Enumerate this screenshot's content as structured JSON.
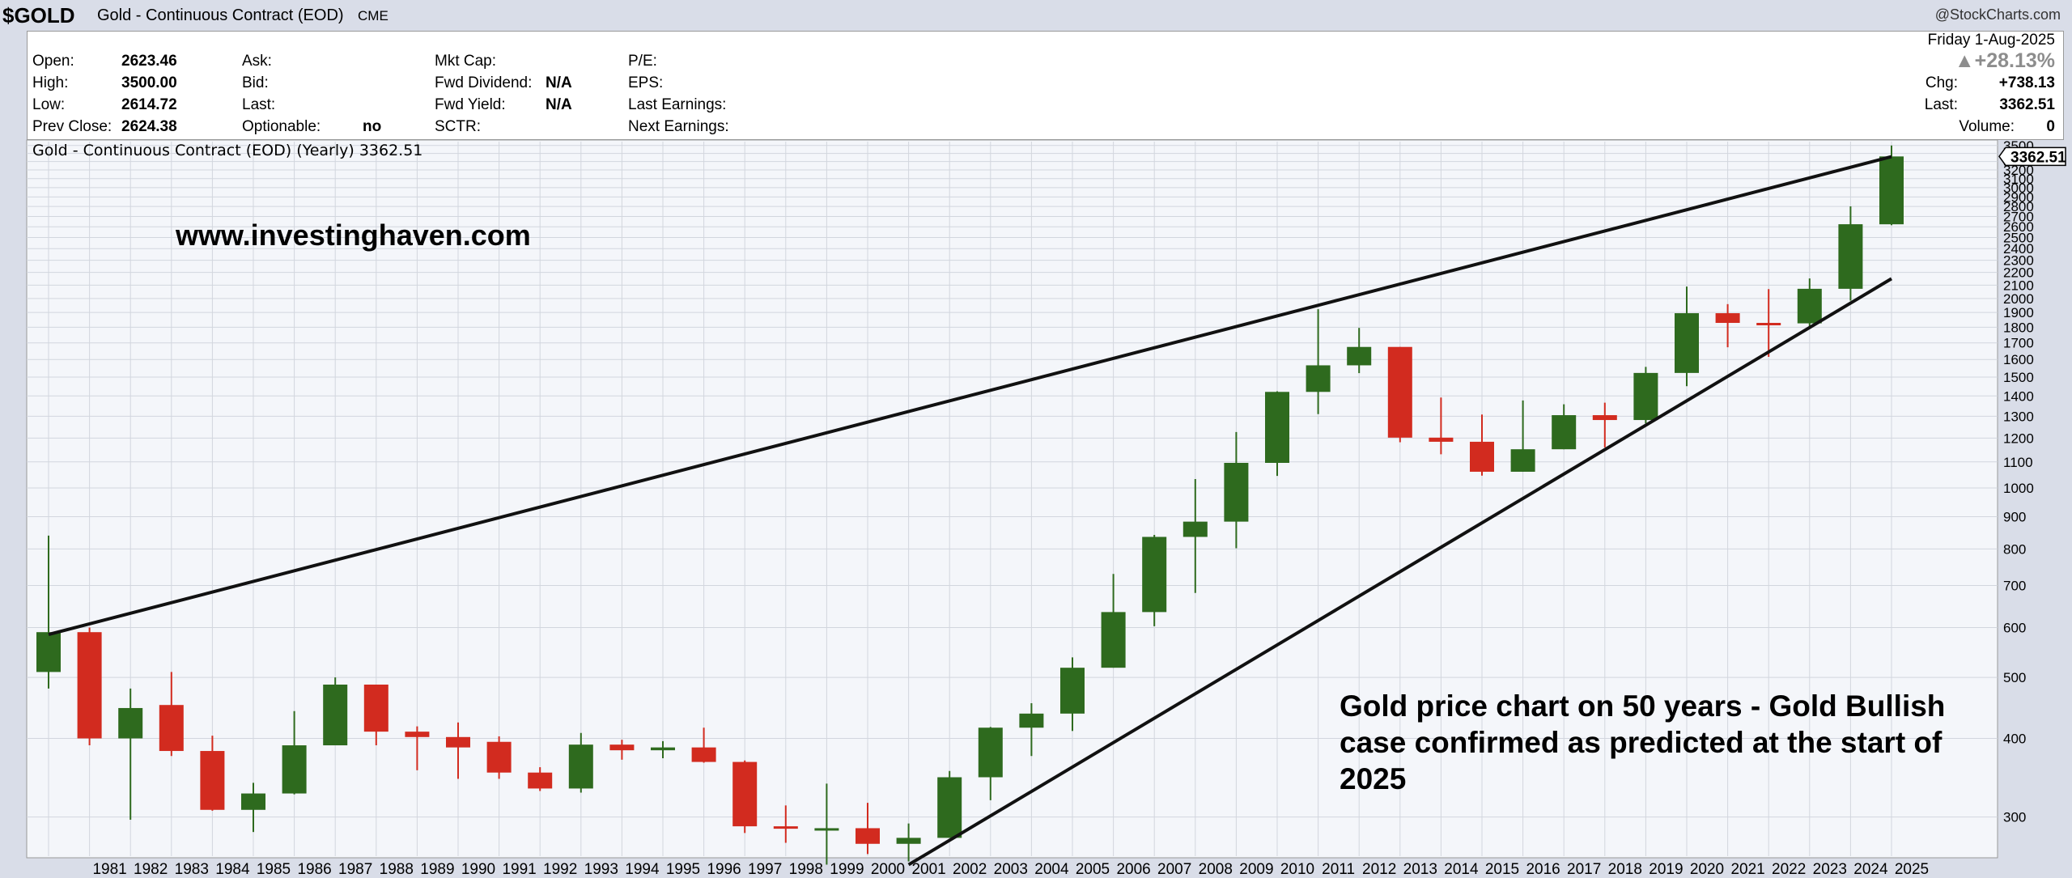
{
  "header": {
    "symbol": "$GOLD",
    "name": "Gold - Continuous Contract (EOD)",
    "exchange": "CME",
    "credit": "@StockCharts.com"
  },
  "quote": {
    "open_label": "Open:",
    "open": "2623.46",
    "high_label": "High:",
    "high": "3500.00",
    "low_label": "Low:",
    "low": "2614.72",
    "prev_close_label": "Prev Close:",
    "prev_close": "2624.38",
    "ask_label": "Ask:",
    "bid_label": "Bid:",
    "last_label": "Last:",
    "optionable_label": "Optionable:",
    "optionable": "no",
    "mkt_cap_label": "Mkt Cap:",
    "fwd_dividend_label": "Fwd Dividend:",
    "fwd_dividend": "N/A",
    "fwd_yield_label": "Fwd Yield:",
    "fwd_yield": "N/A",
    "sctr_label": "SCTR:",
    "pe_label": "P/E:",
    "eps_label": "EPS:",
    "last_earnings_label": "Last Earnings:",
    "next_earnings_label": "Next Earnings:",
    "date": "Friday  1-Aug-2025",
    "pct_change": "▲+28.13%",
    "chg_label": "Chg:",
    "chg": "+738.13",
    "last_price_label": "Last:",
    "last_price": "3362.51",
    "volume_label": "Volume:",
    "volume": "0"
  },
  "chart_data": {
    "type": "candlestick",
    "legend": "Gold - Continuous Contract (EOD) (Yearly) 3362.51",
    "price_tag": "3362.51",
    "watermark": "www.investinghaven.com",
    "annotation": [
      "Gold price chart on 50 years - Gold Bullish",
      "case confirmed as predicted at the start of",
      "2025"
    ],
    "y_scale": "log",
    "ylim": [
      260,
      3550
    ],
    "y_ticks": [
      300,
      400,
      500,
      600,
      700,
      800,
      900,
      1000,
      1100,
      1200,
      1300,
      1400,
      1500,
      1600,
      1700,
      1800,
      1900,
      2000,
      2100,
      2200,
      2300,
      2400,
      2500,
      2600,
      2700,
      2800,
      2900,
      3000,
      3100,
      3200,
      3300,
      3400,
      3500
    ],
    "x_labels": [
      "1981",
      "1982",
      "1983",
      "1984",
      "1985",
      "1986",
      "1987",
      "1988",
      "1989",
      "1990",
      "1991",
      "1992",
      "1993",
      "1994",
      "1995",
      "1996",
      "1997",
      "1998",
      "1999",
      "2000",
      "2001",
      "2002",
      "2003",
      "2004",
      "2005",
      "2006",
      "2007",
      "2008",
      "2009",
      "2010",
      "2011",
      "2012",
      "2013",
      "2014",
      "2015",
      "2016",
      "2017",
      "2018",
      "2019",
      "2020",
      "2021",
      "2022",
      "2023",
      "2024",
      "2025"
    ],
    "candles": [
      {
        "year": "1980",
        "open": 510,
        "high": 840,
        "low": 480,
        "close": 590
      },
      {
        "year": "1981",
        "open": 590,
        "high": 600,
        "low": 390,
        "close": 400
      },
      {
        "year": "1982",
        "open": 400,
        "high": 480,
        "low": 297,
        "close": 447
      },
      {
        "year": "1983",
        "open": 452,
        "high": 510,
        "low": 375,
        "close": 382
      },
      {
        "year": "1984",
        "open": 382,
        "high": 404,
        "low": 307,
        "close": 308
      },
      {
        "year": "1985",
        "open": 308,
        "high": 340,
        "low": 284,
        "close": 327
      },
      {
        "year": "1986",
        "open": 327,
        "high": 442,
        "low": 326,
        "close": 390
      },
      {
        "year": "1987",
        "open": 390,
        "high": 500,
        "low": 390,
        "close": 487
      },
      {
        "year": "1988",
        "open": 487,
        "high": 487,
        "low": 390,
        "close": 410
      },
      {
        "year": "1989",
        "open": 410,
        "high": 418,
        "low": 356,
        "close": 402
      },
      {
        "year": "1990",
        "open": 402,
        "high": 424,
        "low": 345,
        "close": 387
      },
      {
        "year": "1991",
        "open": 395,
        "high": 403,
        "low": 345,
        "close": 353
      },
      {
        "year": "1992",
        "open": 353,
        "high": 360,
        "low": 330,
        "close": 333
      },
      {
        "year": "1993",
        "open": 333,
        "high": 408,
        "low": 328,
        "close": 391
      },
      {
        "year": "1994",
        "open": 391,
        "high": 398,
        "low": 370,
        "close": 383
      },
      {
        "year": "1995",
        "open": 383,
        "high": 396,
        "low": 372,
        "close": 387
      },
      {
        "year": "1996",
        "open": 387,
        "high": 416,
        "low": 366,
        "close": 367
      },
      {
        "year": "1997",
        "open": 367,
        "high": 369,
        "low": 283,
        "close": 290
      },
      {
        "year": "1998",
        "open": 290,
        "high": 313,
        "low": 273,
        "close": 288
      },
      {
        "year": "1999",
        "open": 288,
        "high": 339,
        "low": 252,
        "close": 288
      },
      {
        "year": "2000",
        "open": 288,
        "high": 316,
        "low": 262,
        "close": 272
      },
      {
        "year": "2001",
        "open": 272,
        "high": 293,
        "low": 255,
        "close": 278
      },
      {
        "year": "2002",
        "open": 278,
        "high": 355,
        "low": 278,
        "close": 347
      },
      {
        "year": "2003",
        "open": 347,
        "high": 417,
        "low": 319,
        "close": 416
      },
      {
        "year": "2004",
        "open": 416,
        "high": 455,
        "low": 375,
        "close": 438
      },
      {
        "year": "2005",
        "open": 438,
        "high": 538,
        "low": 411,
        "close": 518
      },
      {
        "year": "2006",
        "open": 518,
        "high": 730,
        "low": 518,
        "close": 635
      },
      {
        "year": "2007",
        "open": 635,
        "high": 842,
        "low": 603,
        "close": 836
      },
      {
        "year": "2008",
        "open": 836,
        "high": 1033,
        "low": 681,
        "close": 884
      },
      {
        "year": "2009",
        "open": 884,
        "high": 1227,
        "low": 802,
        "close": 1096
      },
      {
        "year": "2010",
        "open": 1096,
        "high": 1424,
        "low": 1045,
        "close": 1421
      },
      {
        "year": "2011",
        "open": 1421,
        "high": 1923,
        "low": 1310,
        "close": 1566
      },
      {
        "year": "2012",
        "open": 1566,
        "high": 1796,
        "low": 1522,
        "close": 1675
      },
      {
        "year": "2013",
        "open": 1675,
        "high": 1675,
        "low": 1182,
        "close": 1202
      },
      {
        "year": "2014",
        "open": 1202,
        "high": 1392,
        "low": 1131,
        "close": 1184
      },
      {
        "year": "2015",
        "open": 1184,
        "high": 1308,
        "low": 1046,
        "close": 1061
      },
      {
        "year": "2016",
        "open": 1061,
        "high": 1377,
        "low": 1061,
        "close": 1152
      },
      {
        "year": "2017",
        "open": 1152,
        "high": 1358,
        "low": 1152,
        "close": 1305
      },
      {
        "year": "2018",
        "open": 1305,
        "high": 1366,
        "low": 1160,
        "close": 1282
      },
      {
        "year": "2019",
        "open": 1282,
        "high": 1557,
        "low": 1266,
        "close": 1523
      },
      {
        "year": "2020",
        "open": 1523,
        "high": 2089,
        "low": 1451,
        "close": 1895
      },
      {
        "year": "2021",
        "open": 1895,
        "high": 1959,
        "low": 1673,
        "close": 1829
      },
      {
        "year": "2022",
        "open": 1829,
        "high": 2070,
        "low": 1615,
        "close": 1826
      },
      {
        "year": "2023",
        "open": 1826,
        "high": 2152,
        "low": 1804,
        "close": 2072
      },
      {
        "year": "2024",
        "open": 2072,
        "high": 2801,
        "low": 1984,
        "close": 2624
      },
      {
        "year": "2025",
        "open": 2623.46,
        "high": 3500,
        "low": 2614.72,
        "close": 3362.51
      }
    ],
    "trendlines": [
      {
        "from_year": "1980",
        "from_price": 585,
        "to_year": "2025",
        "to_price": 3360
      },
      {
        "from_year": "2001",
        "from_price": 252,
        "to_year": "2025",
        "to_price": 2150
      }
    ],
    "colors": {
      "up": "#2e6a1e",
      "down": "#d22b1f",
      "background": "#f4f6fa",
      "grid": "#d2d6de"
    }
  }
}
